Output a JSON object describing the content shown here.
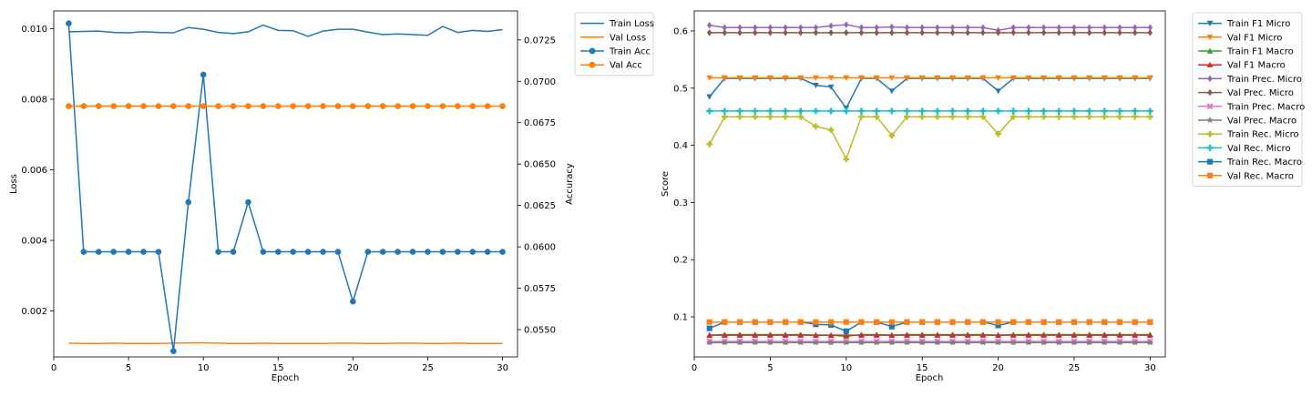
{
  "chart_data": [
    {
      "type": "line",
      "xlabel": "Epoch",
      "ylabel": "Loss",
      "ylabel_right": "Accuracy",
      "x": [
        1,
        2,
        3,
        4,
        5,
        6,
        7,
        8,
        9,
        10,
        11,
        12,
        13,
        14,
        15,
        16,
        17,
        18,
        19,
        20,
        21,
        22,
        23,
        24,
        25,
        26,
        27,
        28,
        29,
        30
      ],
      "xlim": [
        0,
        31
      ],
      "ylim": [
        0.0007,
        0.0105
      ],
      "ylim_right": [
        0.05335,
        0.07425
      ],
      "xticks": [
        0,
        5,
        10,
        15,
        20,
        25,
        30
      ],
      "yticks": [
        0.002,
        0.004,
        0.006,
        0.008,
        0.01
      ],
      "ytick_labels": [
        "0.002",
        "0.004",
        "0.006",
        "0.008",
        "0.010"
      ],
      "yticks_right": [
        0.055,
        0.0575,
        0.06,
        0.0625,
        0.065,
        0.0675,
        0.07,
        0.0725
      ],
      "ytick_labels_right": [
        "0.0550",
        "0.0575",
        "0.0600",
        "0.0625",
        "0.0650",
        "0.0675",
        "0.0700",
        "0.0725"
      ],
      "grid": false,
      "legend_position": "outside-right",
      "series": [
        {
          "name": "Train Loss",
          "axis": "left",
          "color": "#1f77b4",
          "marker": "none",
          "values": [
            0.00991,
            0.00992,
            0.00993,
            0.00989,
            0.00988,
            0.00991,
            0.00989,
            0.00988,
            0.01003,
            0.00998,
            0.00989,
            0.00986,
            0.00991,
            0.0101,
            0.00995,
            0.00994,
            0.00978,
            0.00993,
            0.00998,
            0.00998,
            0.0099,
            0.00983,
            0.00985,
            0.00983,
            0.00981,
            0.01006,
            0.00989,
            0.00995,
            0.00992,
            0.00997
          ]
        },
        {
          "name": "Val Loss",
          "axis": "left",
          "color": "#ff7f0e",
          "marker": "none",
          "values": [
            0.00109,
            0.00108,
            0.00108,
            0.00109,
            0.00108,
            0.00108,
            0.00108,
            0.00109,
            0.0011,
            0.0011,
            0.00109,
            0.00108,
            0.00108,
            0.00109,
            0.00108,
            0.00108,
            0.00108,
            0.00108,
            0.00109,
            0.00109,
            0.00108,
            0.00108,
            0.00109,
            0.00109,
            0.00108,
            0.00108,
            0.00109,
            0.00108,
            0.00108,
            0.00108
          ]
        },
        {
          "name": "Train Acc",
          "axis": "right",
          "color": "#1f77b4",
          "marker": "circle",
          "values": [
            0.0735,
            0.0597,
            0.0597,
            0.0597,
            0.0597,
            0.0597,
            0.0597,
            0.0537,
            0.0627,
            0.0704,
            0.0597,
            0.0597,
            0.0627,
            0.0597,
            0.0597,
            0.0597,
            0.0597,
            0.0597,
            0.0597,
            0.0567,
            0.0597,
            0.0597,
            0.0597,
            0.0597,
            0.0597,
            0.0597,
            0.0597,
            0.0597,
            0.0597,
            0.0597
          ]
        },
        {
          "name": "Val Acc",
          "axis": "right",
          "color": "#ff7f0e",
          "marker": "circle",
          "values": [
            0.0685,
            0.0685,
            0.0685,
            0.0685,
            0.0685,
            0.0685,
            0.0685,
            0.0685,
            0.0685,
            0.0685,
            0.0685,
            0.0685,
            0.0685,
            0.0685,
            0.0685,
            0.0685,
            0.0685,
            0.0685,
            0.0685,
            0.0685,
            0.0685,
            0.0685,
            0.0685,
            0.0685,
            0.0685,
            0.0685,
            0.0685,
            0.0685,
            0.0685,
            0.0685
          ]
        }
      ]
    },
    {
      "type": "line",
      "xlabel": "Epoch",
      "ylabel": "Score",
      "x": [
        1,
        2,
        3,
        4,
        5,
        6,
        7,
        8,
        9,
        10,
        11,
        12,
        13,
        14,
        15,
        16,
        17,
        18,
        19,
        20,
        21,
        22,
        23,
        24,
        25,
        26,
        27,
        28,
        29,
        30
      ],
      "xlim": [
        0,
        31
      ],
      "ylim": [
        0.03,
        0.635
      ],
      "xticks": [
        0,
        5,
        10,
        15,
        20,
        25,
        30
      ],
      "yticks": [
        0.1,
        0.2,
        0.3,
        0.4,
        0.5,
        0.6
      ],
      "ytick_labels": [
        "0.1",
        "0.2",
        "0.3",
        "0.4",
        "0.5",
        "0.6"
      ],
      "grid": false,
      "legend_position": "outside-right",
      "series": [
        {
          "name": "Train F1 Micro",
          "color": "#1f77b4",
          "marker": "triangle-down",
          "values": [
            0.485,
            0.517,
            0.517,
            0.517,
            0.517,
            0.517,
            0.517,
            0.505,
            0.502,
            0.465,
            0.517,
            0.517,
            0.495,
            0.517,
            0.517,
            0.517,
            0.517,
            0.517,
            0.517,
            0.495,
            0.517,
            0.517,
            0.517,
            0.517,
            0.517,
            0.517,
            0.517,
            0.517,
            0.517,
            0.517
          ]
        },
        {
          "name": "Val F1 Micro",
          "color": "#ff7f0e",
          "marker": "triangle-down",
          "values": [
            0.518,
            0.518,
            0.518,
            0.518,
            0.518,
            0.518,
            0.518,
            0.518,
            0.518,
            0.518,
            0.518,
            0.518,
            0.518,
            0.518,
            0.518,
            0.518,
            0.518,
            0.518,
            0.518,
            0.518,
            0.518,
            0.518,
            0.518,
            0.518,
            0.518,
            0.518,
            0.518,
            0.518,
            0.518,
            0.518
          ]
        },
        {
          "name": "Train F1 Macro",
          "color": "#2ca02c",
          "marker": "triangle-up",
          "values": [
            0.068,
            0.069,
            0.069,
            0.069,
            0.069,
            0.069,
            0.069,
            0.068,
            0.068,
            0.066,
            0.069,
            0.069,
            0.068,
            0.069,
            0.069,
            0.069,
            0.069,
            0.069,
            0.069,
            0.068,
            0.069,
            0.069,
            0.069,
            0.069,
            0.069,
            0.069,
            0.069,
            0.069,
            0.069,
            0.069
          ]
        },
        {
          "name": "Val F1 Macro",
          "color": "#d62728",
          "marker": "triangle-up",
          "values": [
            0.068,
            0.068,
            0.068,
            0.068,
            0.068,
            0.068,
            0.068,
            0.068,
            0.068,
            0.068,
            0.068,
            0.068,
            0.068,
            0.068,
            0.068,
            0.068,
            0.068,
            0.068,
            0.068,
            0.068,
            0.068,
            0.068,
            0.068,
            0.068,
            0.068,
            0.068,
            0.068,
            0.068,
            0.068,
            0.068
          ]
        },
        {
          "name": "Train Prec. Micro",
          "color": "#9467bd",
          "marker": "diamond",
          "values": [
            0.61,
            0.606,
            0.606,
            0.606,
            0.606,
            0.606,
            0.606,
            0.606,
            0.609,
            0.611,
            0.606,
            0.606,
            0.607,
            0.606,
            0.606,
            0.606,
            0.606,
            0.606,
            0.606,
            0.601,
            0.606,
            0.606,
            0.606,
            0.606,
            0.606,
            0.606,
            0.606,
            0.606,
            0.606,
            0.606
          ]
        },
        {
          "name": "Val Prec. Micro",
          "color": "#8c564b",
          "marker": "diamond",
          "values": [
            0.597,
            0.597,
            0.597,
            0.597,
            0.597,
            0.597,
            0.597,
            0.597,
            0.597,
            0.597,
            0.597,
            0.597,
            0.597,
            0.597,
            0.597,
            0.597,
            0.597,
            0.597,
            0.597,
            0.597,
            0.597,
            0.597,
            0.597,
            0.597,
            0.597,
            0.597,
            0.597,
            0.597,
            0.597,
            0.597
          ]
        },
        {
          "name": "Train Prec. Macro",
          "color": "#e377c2",
          "marker": "x",
          "values": [
            0.057,
            0.057,
            0.057,
            0.057,
            0.057,
            0.057,
            0.057,
            0.057,
            0.057,
            0.057,
            0.057,
            0.057,
            0.057,
            0.057,
            0.057,
            0.057,
            0.057,
            0.057,
            0.057,
            0.057,
            0.057,
            0.057,
            0.057,
            0.057,
            0.057,
            0.057,
            0.057,
            0.057,
            0.057,
            0.057
          ]
        },
        {
          "name": "Val Prec. Macro",
          "color": "#7f7f7f",
          "marker": "star",
          "values": [
            0.055,
            0.055,
            0.055,
            0.055,
            0.055,
            0.055,
            0.055,
            0.055,
            0.055,
            0.055,
            0.055,
            0.055,
            0.055,
            0.055,
            0.055,
            0.055,
            0.055,
            0.055,
            0.055,
            0.055,
            0.055,
            0.055,
            0.055,
            0.055,
            0.055,
            0.055,
            0.055,
            0.055,
            0.055,
            0.055
          ]
        },
        {
          "name": "Train Rec. Micro",
          "color": "#bcbd22",
          "marker": "plus",
          "values": [
            0.402,
            0.45,
            0.45,
            0.45,
            0.45,
            0.45,
            0.45,
            0.433,
            0.427,
            0.376,
            0.45,
            0.45,
            0.417,
            0.45,
            0.45,
            0.45,
            0.45,
            0.45,
            0.45,
            0.42,
            0.45,
            0.45,
            0.45,
            0.45,
            0.45,
            0.45,
            0.45,
            0.45,
            0.45,
            0.45
          ]
        },
        {
          "name": "Val Rec. Micro",
          "color": "#17becf",
          "marker": "plus",
          "values": [
            0.46,
            0.46,
            0.46,
            0.46,
            0.46,
            0.46,
            0.46,
            0.46,
            0.46,
            0.46,
            0.46,
            0.46,
            0.46,
            0.46,
            0.46,
            0.46,
            0.46,
            0.46,
            0.46,
            0.46,
            0.46,
            0.46,
            0.46,
            0.46,
            0.46,
            0.46,
            0.46,
            0.46,
            0.46,
            0.46
          ]
        },
        {
          "name": "Train Rec. Macro",
          "color": "#1f77b4",
          "marker": "square",
          "values": [
            0.08,
            0.091,
            0.091,
            0.091,
            0.091,
            0.091,
            0.091,
            0.087,
            0.086,
            0.075,
            0.091,
            0.091,
            0.083,
            0.091,
            0.091,
            0.091,
            0.091,
            0.091,
            0.091,
            0.085,
            0.091,
            0.091,
            0.091,
            0.091,
            0.091,
            0.091,
            0.091,
            0.091,
            0.091,
            0.091
          ]
        },
        {
          "name": "Val Rec. Macro",
          "color": "#ff7f0e",
          "marker": "square",
          "values": [
            0.091,
            0.091,
            0.091,
            0.091,
            0.091,
            0.091,
            0.091,
            0.091,
            0.091,
            0.091,
            0.091,
            0.091,
            0.091,
            0.091,
            0.091,
            0.091,
            0.091,
            0.091,
            0.091,
            0.091,
            0.091,
            0.091,
            0.091,
            0.091,
            0.091,
            0.091,
            0.091,
            0.091,
            0.091,
            0.091
          ]
        }
      ]
    }
  ]
}
